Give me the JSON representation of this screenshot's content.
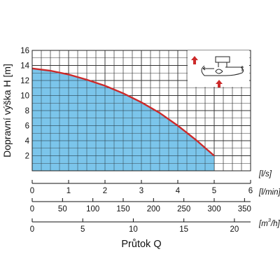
{
  "chart_data": {
    "type": "area",
    "ylabel": "Dopravní výška H [m]",
    "xlabel": "Průtok Q",
    "ylim": [
      0,
      16
    ],
    "yticks": [
      "0",
      "2",
      "4",
      "6",
      "8",
      "10",
      "12",
      "14",
      "16"
    ],
    "grid": true,
    "axes": [
      {
        "unit": "[l/s]",
        "range": [
          0,
          6
        ],
        "ticks": [
          "0",
          "1",
          "2",
          "3",
          "4",
          "5",
          "6"
        ]
      },
      {
        "unit": "[l/min]",
        "range": [
          0,
          360
        ],
        "ticks": [
          "0",
          "50",
          "100",
          "150",
          "200",
          "250",
          "300",
          "350"
        ]
      },
      {
        "unit": "[m³/h]",
        "unit_base": "[m",
        "unit_sup": "3",
        "unit_tail": "/h]",
        "range": [
          0,
          21.6
        ],
        "ticks": [
          "0",
          "5",
          "10",
          "15",
          "20"
        ]
      }
    ],
    "series": [
      {
        "x": [
          0,
          0.5,
          1,
          1.5,
          2,
          2.5,
          3,
          3.5,
          4,
          4.5,
          5
        ],
        "y": [
          13.6,
          13.3,
          12.8,
          12.1,
          11.3,
          10.3,
          9.1,
          7.7,
          6.0,
          4.1,
          2.0
        ]
      }
    ],
    "colors": {
      "fill": "#5eb8e6",
      "line": "#cc2a2a",
      "grid": "#333333",
      "arrow": "#cc2a2a"
    }
  }
}
